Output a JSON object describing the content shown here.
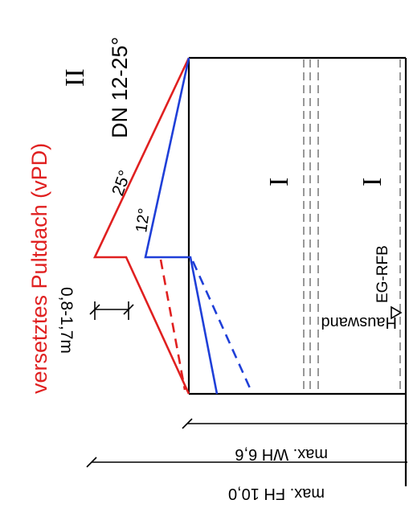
{
  "title": "versetztes Pultdach (vPD)",
  "roof_pitch": "DN 12-25°",
  "full_storey_limit": "II",
  "storey_marks": [
    "I",
    "I"
  ],
  "angle_25": "25°",
  "angle_12": "12°",
  "offset_height": "0,8-1,7m",
  "ground_reference": "EG-RFB",
  "wall_label": "Hauswand",
  "max_wall_height": "max. WH 6,6",
  "max_ridge_height": "max. FH 10,0",
  "colors": {
    "steep_roof": "#e02020",
    "flat_roof": "#1f3fd8",
    "storey_lines": "#8c8c8c",
    "outline": "#000000"
  }
}
